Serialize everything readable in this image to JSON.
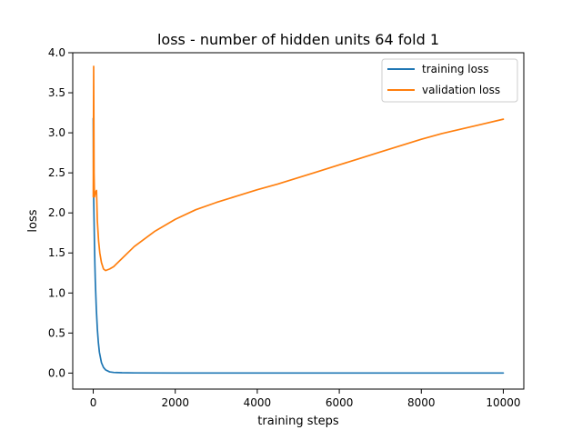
{
  "chart_data": {
    "type": "line",
    "title": "loss - number of hidden units 64 fold 1",
    "xlabel": "training steps",
    "ylabel": "loss",
    "xlim": [
      -500,
      10500
    ],
    "ylim": [
      -0.2,
      4.0
    ],
    "xticks": [
      0,
      2000,
      4000,
      6000,
      8000,
      10000
    ],
    "yticks": [
      0.0,
      0.5,
      1.0,
      1.5,
      2.0,
      2.5,
      3.0,
      3.5,
      4.0
    ],
    "grid": false,
    "legend_position": "top-right",
    "series": [
      {
        "name": "training loss",
        "color": "#1f77b4",
        "points": [
          [
            0,
            3.18
          ],
          [
            5,
            2.6
          ],
          [
            10,
            2.2
          ],
          [
            20,
            1.9
          ],
          [
            30,
            1.6
          ],
          [
            40,
            1.35
          ],
          [
            50,
            1.15
          ],
          [
            75,
            0.8
          ],
          [
            100,
            0.55
          ],
          [
            125,
            0.38
          ],
          [
            150,
            0.26
          ],
          [
            200,
            0.13
          ],
          [
            250,
            0.07
          ],
          [
            300,
            0.04
          ],
          [
            400,
            0.015
          ],
          [
            500,
            0.008
          ],
          [
            700,
            0.004
          ],
          [
            1000,
            0.002
          ],
          [
            2000,
            0.001
          ],
          [
            4000,
            0.001
          ],
          [
            6000,
            0.001
          ],
          [
            8000,
            0.001
          ],
          [
            10000,
            0.001
          ]
        ]
      },
      {
        "name": "validation loss",
        "color": "#ff7f0e",
        "points": [
          [
            0,
            2.2
          ],
          [
            10,
            3.83
          ],
          [
            20,
            2.5
          ],
          [
            30,
            2.2
          ],
          [
            50,
            2.25
          ],
          [
            80,
            2.28
          ],
          [
            100,
            1.9
          ],
          [
            130,
            1.65
          ],
          [
            160,
            1.5
          ],
          [
            200,
            1.38
          ],
          [
            250,
            1.3
          ],
          [
            300,
            1.28
          ],
          [
            350,
            1.29
          ],
          [
            400,
            1.3
          ],
          [
            500,
            1.33
          ],
          [
            700,
            1.43
          ],
          [
            1000,
            1.58
          ],
          [
            1500,
            1.77
          ],
          [
            2000,
            1.92
          ],
          [
            2500,
            2.04
          ],
          [
            3000,
            2.13
          ],
          [
            3500,
            2.21
          ],
          [
            4000,
            2.29
          ],
          [
            4500,
            2.36
          ],
          [
            5000,
            2.44
          ],
          [
            5500,
            2.52
          ],
          [
            6000,
            2.6
          ],
          [
            6500,
            2.68
          ],
          [
            7000,
            2.76
          ],
          [
            7500,
            2.84
          ],
          [
            8000,
            2.92
          ],
          [
            8500,
            2.99
          ],
          [
            9000,
            3.05
          ],
          [
            9500,
            3.11
          ],
          [
            10000,
            3.17
          ]
        ]
      }
    ]
  }
}
